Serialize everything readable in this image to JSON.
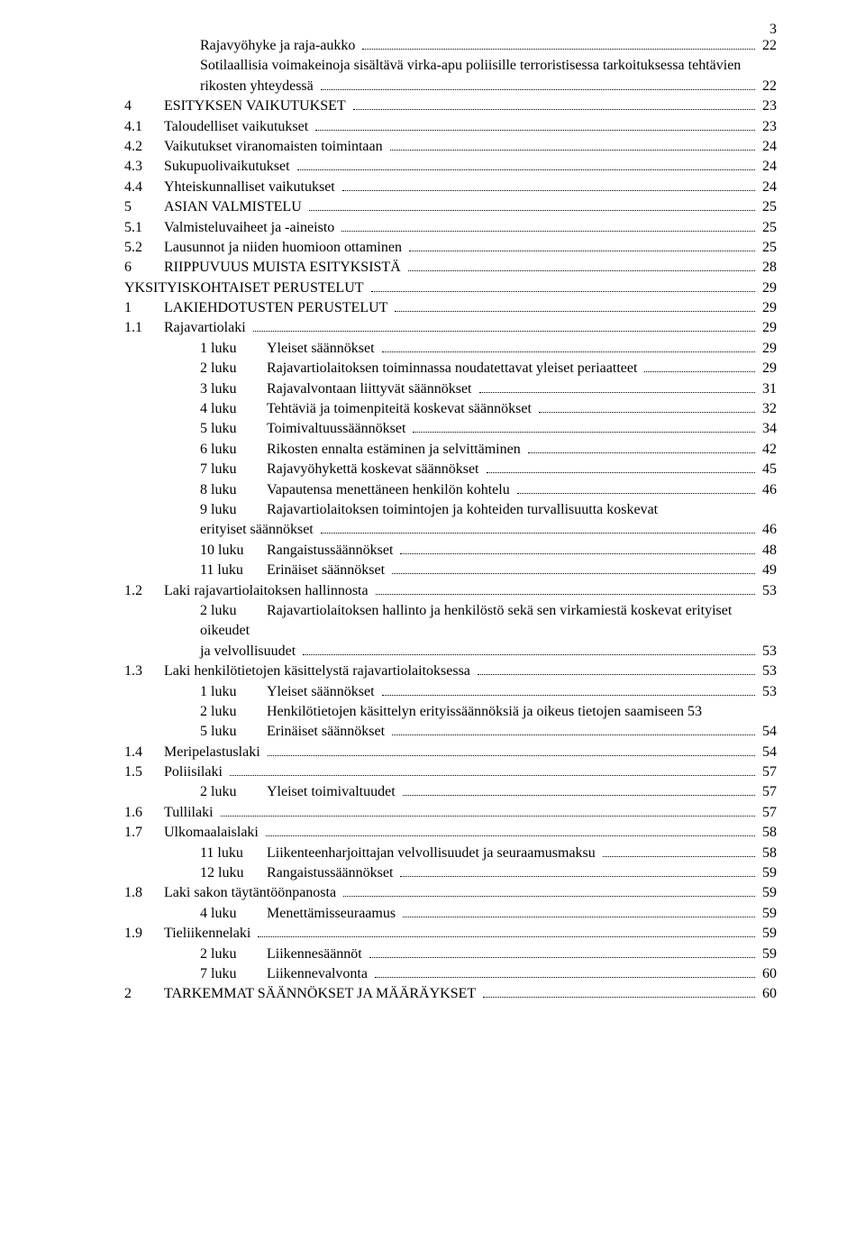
{
  "pageNumber": "3",
  "entries": [
    {
      "indent": "lvl3",
      "num": "",
      "label": "Rajavyöhyke ja raja-aukko",
      "page": "22"
    },
    {
      "indent": "lvl3",
      "num": "",
      "label": "Sotilaallisia voimakeinoja sisältävä virka-apu poliisille terroristisessa tarkoituksessa tehtävien rikosten yhteydessä",
      "page": "22",
      "wrap": true
    },
    {
      "indent": "lvl1",
      "num": "4",
      "label": "ESITYKSEN VAIKUTUKSET",
      "page": "23"
    },
    {
      "indent": "lvl2",
      "num": "4.1",
      "label": "Taloudelliset vaikutukset",
      "page": "23"
    },
    {
      "indent": "lvl2",
      "num": "4.2",
      "label": "Vaikutukset viranomaisten toimintaan",
      "page": "24"
    },
    {
      "indent": "lvl2",
      "num": "4.3",
      "label": "Sukupuolivaikutukset",
      "page": "24"
    },
    {
      "indent": "lvl2",
      "num": "4.4",
      "label": "Yhteiskunnalliset vaikutukset",
      "page": "24"
    },
    {
      "indent": "lvl1",
      "num": "5",
      "label": "ASIAN VALMISTELU",
      "page": "25"
    },
    {
      "indent": "lvl2",
      "num": "5.1",
      "label": "Valmisteluvaiheet ja -aineisto",
      "page": "25"
    },
    {
      "indent": "lvl2",
      "num": "5.2",
      "label": "Lausunnot ja niiden huomioon ottaminen",
      "page": "25"
    },
    {
      "indent": "lvl1",
      "num": "6",
      "label": "RIIPPUVUUS MUISTA ESITYKSISTÄ",
      "page": "28"
    },
    {
      "indent": "lvl1",
      "num": "",
      "label": "YKSITYISKOHTAISET PERUSTELUT",
      "page": "29"
    },
    {
      "indent": "lvl1",
      "num": "1",
      "label": "LAKIEHDOTUSTEN PERUSTELUT",
      "page": "29"
    },
    {
      "indent": "lvl2",
      "num": "1.1",
      "label": "Rajavartiolaki",
      "page": "29"
    },
    {
      "indent": "lvl3",
      "num": "1 luku",
      "label": "Yleiset säännökset",
      "page": "29"
    },
    {
      "indent": "lvl3",
      "num": "2 luku",
      "label": "Rajavartiolaitoksen toiminnassa noudatettavat yleiset periaatteet",
      "page": "29"
    },
    {
      "indent": "lvl3",
      "num": "3 luku",
      "label": "Rajavalvontaan liittyvät säännökset",
      "page": "31"
    },
    {
      "indent": "lvl3",
      "num": "4 luku",
      "label": "Tehtäviä ja toimenpiteitä koskevat säännökset",
      "page": "32"
    },
    {
      "indent": "lvl3",
      "num": "5 luku",
      "label": "Toimivaltuussäännökset",
      "page": "34"
    },
    {
      "indent": "lvl3",
      "num": "6 luku",
      "label": "Rikosten ennalta estäminen ja selvittäminen",
      "page": "42"
    },
    {
      "indent": "lvl3",
      "num": "7 luku",
      "label": "Rajavyöhykettä koskevat säännökset",
      "page": "45"
    },
    {
      "indent": "lvl3",
      "num": "8 luku",
      "label": "Vapautensa menettäneen henkilön kohtelu",
      "page": "46"
    },
    {
      "indent": "lvl3",
      "num": "9 luku",
      "label": "Rajavartiolaitoksen toimintojen ja kohteiden turvallisuutta koskevat erityiset säännökset",
      "page": "46",
      "wrap": true
    },
    {
      "indent": "lvl3",
      "num": "10 luku",
      "label": "Rangaistussäännökset",
      "page": "48"
    },
    {
      "indent": "lvl3",
      "num": "11 luku",
      "label": "Erinäiset säännökset",
      "page": "49"
    },
    {
      "indent": "lvl2",
      "num": "1.2",
      "label": "Laki rajavartiolaitoksen hallinnosta",
      "page": "53"
    },
    {
      "indent": "lvl3",
      "num": "2 luku",
      "label": "Rajavartiolaitoksen hallinto ja henkilöstö sekä sen virkamiestä koskevat erityiset oikeudet ja velvollisuudet",
      "page": "53",
      "wrap": true
    },
    {
      "indent": "lvl2",
      "num": "1.3",
      "label": "Laki henkilötietojen käsittelystä rajavartiolaitoksessa",
      "page": "53"
    },
    {
      "indent": "lvl3",
      "num": "1 luku",
      "label": "Yleiset säännökset",
      "page": "53"
    },
    {
      "indent": "lvl3",
      "num": "2 luku",
      "label": "Henkilötietojen käsittelyn erityissäännöksiä ja oikeus tietojen saamiseen 53",
      "page": "",
      "noDots": true,
      "wrap": true
    },
    {
      "indent": "lvl3",
      "num": "5 luku",
      "label": "Erinäiset säännökset",
      "page": "54"
    },
    {
      "indent": "lvl2",
      "num": "1.4",
      "label": "Meripelastuslaki",
      "page": "54"
    },
    {
      "indent": "lvl2",
      "num": "1.5",
      "label": "Poliisilaki",
      "page": "57"
    },
    {
      "indent": "lvl3",
      "num": "2 luku",
      "label": "Yleiset toimivaltuudet",
      "page": "57"
    },
    {
      "indent": "lvl2",
      "num": "1.6",
      "label": "Tullilaki",
      "page": "57"
    },
    {
      "indent": "lvl2",
      "num": "1.7",
      "label": "Ulkomaalaislaki",
      "page": "58"
    },
    {
      "indent": "lvl3",
      "num": "11 luku",
      "label": "Liikenteenharjoittajan velvollisuudet ja seuraamusmaksu",
      "page": "58"
    },
    {
      "indent": "lvl3",
      "num": "12 luku",
      "label": "Rangaistussäännökset",
      "page": "59"
    },
    {
      "indent": "lvl2",
      "num": "1.8",
      "label": "Laki sakon täytäntöönpanosta",
      "page": "59"
    },
    {
      "indent": "lvl3",
      "num": "4 luku",
      "label": "Menettämisseuraamus",
      "page": "59"
    },
    {
      "indent": "lvl2",
      "num": "1.9",
      "label": "Tieliikennelaki",
      "page": "59"
    },
    {
      "indent": "lvl3",
      "num": "2 luku",
      "label": "Liikennesäännöt",
      "page": "59"
    },
    {
      "indent": "lvl3",
      "num": "7 luku",
      "label": "Liikennevalvonta",
      "page": "60"
    },
    {
      "indent": "lvl1",
      "num": "2",
      "label": "TARKEMMAT SÄÄNNÖKSET JA MÄÄRÄYKSET",
      "page": "60"
    }
  ]
}
